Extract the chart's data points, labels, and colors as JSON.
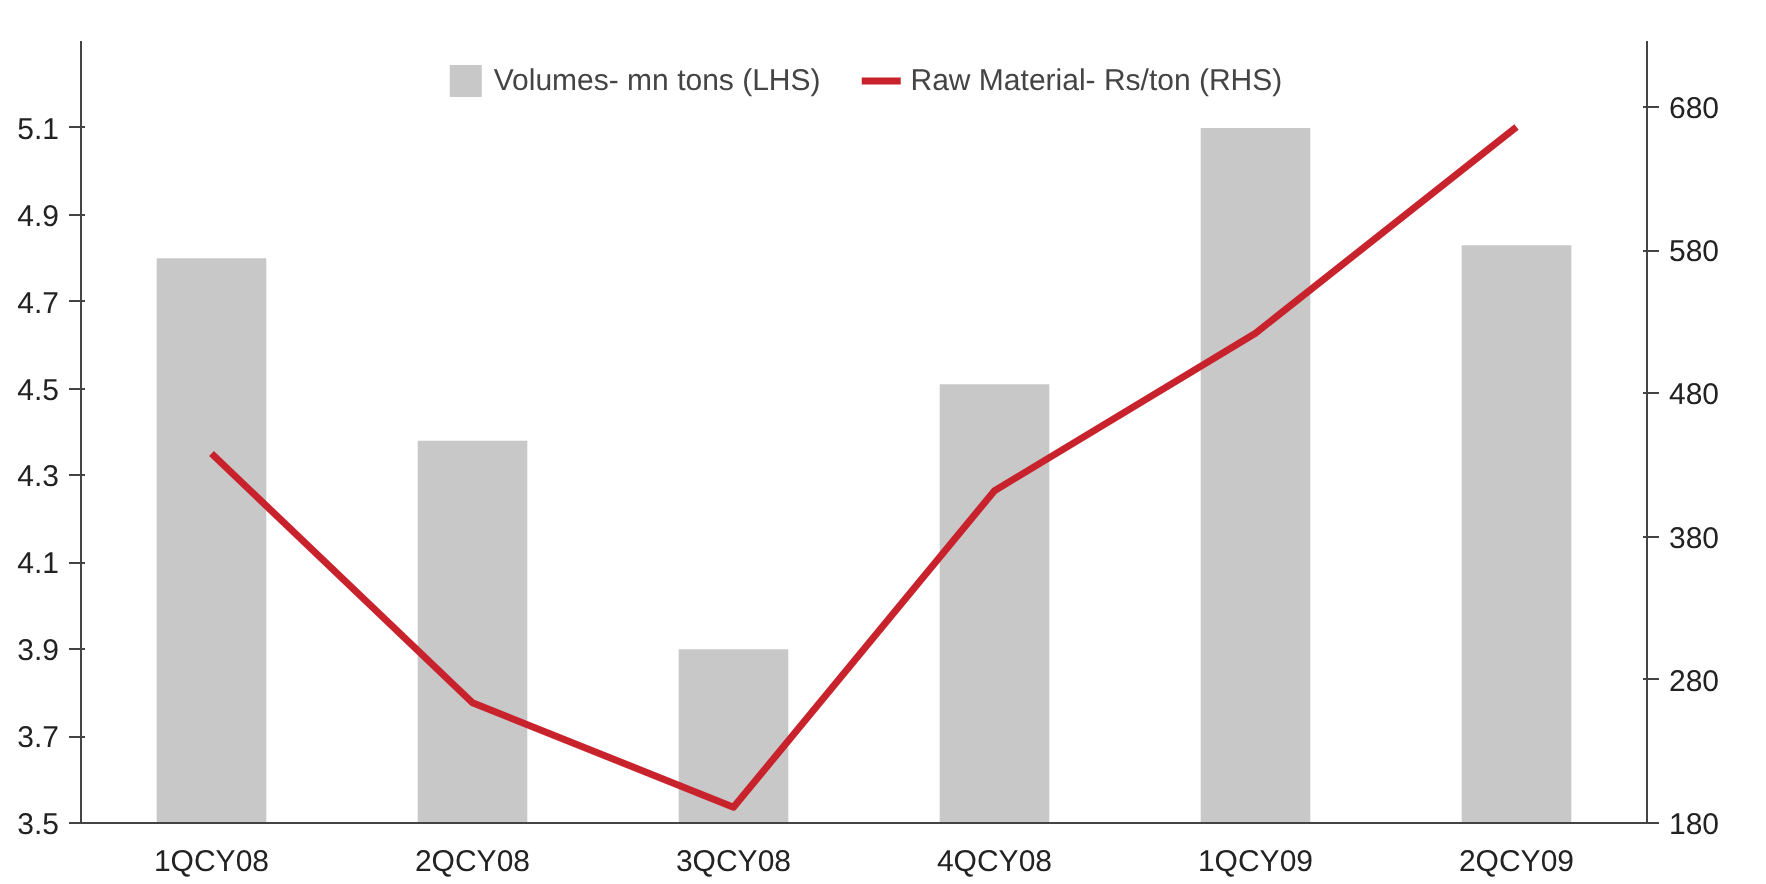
{
  "chart_data": {
    "type": "bar",
    "categories": [
      "1QCY08",
      "2QCY08",
      "3QCY08",
      "4QCY08",
      "1QCY09",
      "2QCY09"
    ],
    "series": [
      {
        "name": "Volumes- mn tons (LHS)",
        "color": "#c8c8c8",
        "values": [
          4.8,
          4.38,
          3.9,
          4.51,
          5.1,
          4.83
        ]
      },
      {
        "name": "Raw Material- Rs/ton (RHS)",
        "type": "line",
        "axis": "y2",
        "color": "#c8232c",
        "values": [
          438,
          264,
          191,
          412,
          522,
          666
        ]
      }
    ],
    "ylim": [
      3.5,
      5.3
    ],
    "yticks": [
      3.5,
      3.7,
      3.9,
      4.1,
      4.3,
      4.5,
      4.7,
      4.9,
      5.1
    ],
    "y2lim": [
      180,
      726
    ],
    "y2ticks": [
      180,
      280,
      380,
      480,
      580,
      680
    ],
    "legend": "top",
    "grid": false,
    "marker": "none",
    "line_style": "solid"
  }
}
